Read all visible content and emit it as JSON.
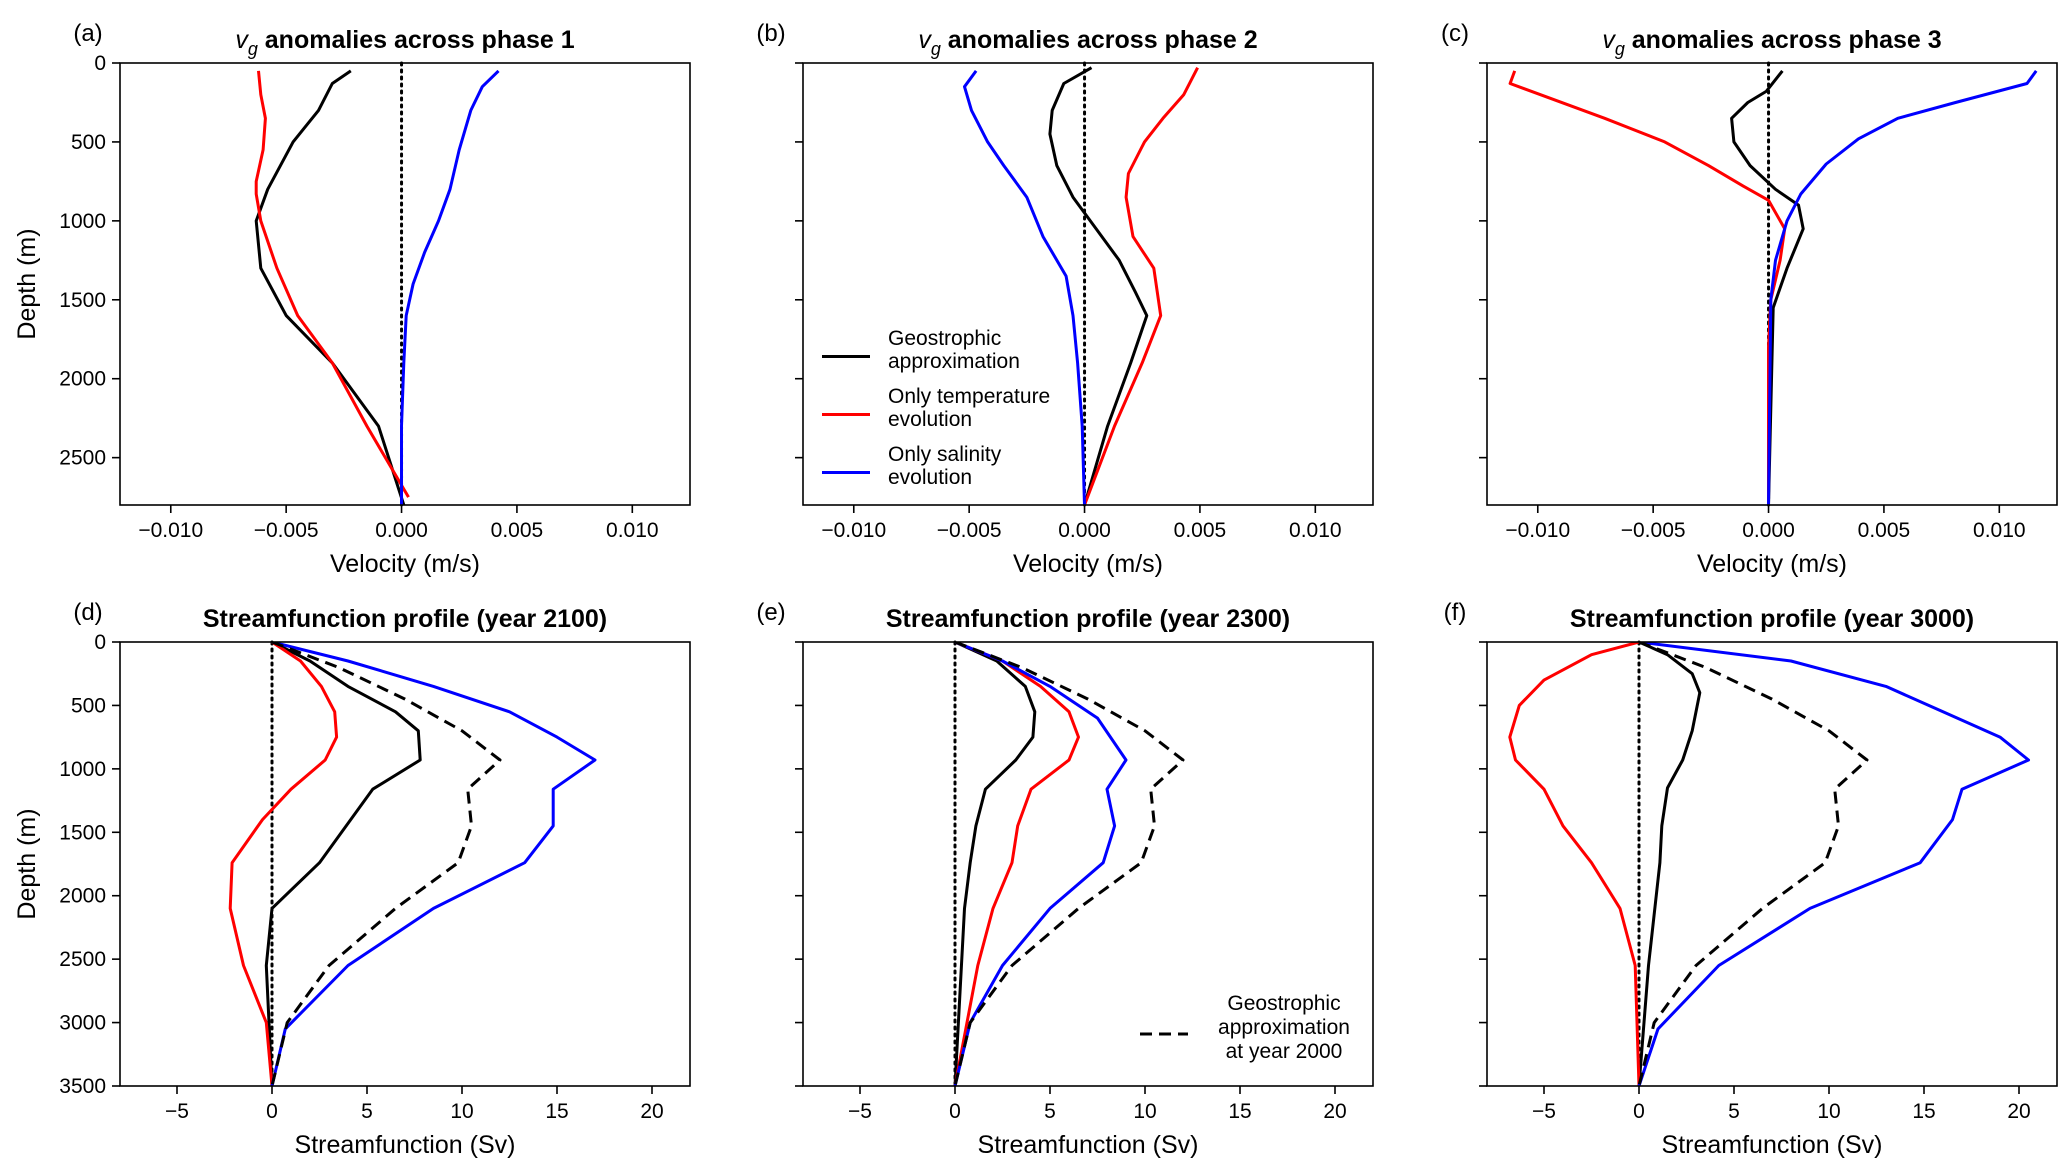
{
  "chart_data": [
    {
      "type": "line",
      "panel": "(a)",
      "title_prefix": "v",
      "title_sub": "g",
      "title_rest": " anomalies across phase 1",
      "xlabel": "Velocity (m/s)",
      "ylabel": "Depth (m)",
      "xlim": [
        -0.0122,
        0.0125
      ],
      "ylim": [
        2800,
        0
      ],
      "xticks": [
        -0.01,
        -0.005,
        0.0,
        0.005,
        0.01
      ],
      "xtick_labels": [
        "−0.010",
        "−0.005",
        "0.000",
        "0.005",
        "0.010"
      ],
      "yticks": [
        0,
        500,
        1000,
        1500,
        2000,
        2500
      ],
      "ytick_labels": [
        "0",
        "500",
        "1000",
        "1500",
        "2000",
        "2500"
      ],
      "show_yticklabels": true,
      "show_ylabel": true,
      "reference_line": "x=0 dotted",
      "series": [
        {
          "name": "Geostrophic approximation",
          "color": "#000000",
          "dash": "solid",
          "x": [
            -0.0022,
            -0.003,
            -0.0036,
            -0.0047,
            -0.0058,
            -0.0063,
            -0.0061,
            -0.005,
            -0.003,
            -0.001,
            0.0001
          ],
          "y": [
            50,
            130,
            300,
            500,
            800,
            1000,
            1300,
            1600,
            1900,
            2300,
            2800
          ]
        },
        {
          "name": "Only temperature evolution",
          "color": "#ff0000",
          "dash": "solid",
          "x": [
            -0.0062,
            -0.0061,
            -0.0059,
            -0.006,
            -0.0063,
            -0.0063,
            -0.0061,
            -0.0054,
            -0.0045,
            -0.003,
            -0.0015,
            0.0003
          ],
          "y": [
            50,
            200,
            350,
            550,
            750,
            830,
            1000,
            1300,
            1600,
            1900,
            2300,
            2750
          ]
        },
        {
          "name": "Only salinity evolution",
          "color": "#0000ff",
          "dash": "solid",
          "x": [
            0.0042,
            0.0035,
            0.003,
            0.0025,
            0.0021,
            0.0016,
            0.001,
            0.0005,
            0.0002,
            0.0001,
            0.0,
            0.0
          ],
          "y": [
            50,
            150,
            300,
            550,
            800,
            1000,
            1200,
            1400,
            1600,
            1900,
            2300,
            2800
          ]
        }
      ]
    },
    {
      "type": "line",
      "panel": "(b)",
      "title_prefix": "v",
      "title_sub": "g",
      "title_rest": " anomalies across phase 2",
      "xlabel": "Velocity (m/s)",
      "ylabel": "",
      "xlim": [
        -0.0122,
        0.0125
      ],
      "ylim": [
        2800,
        0
      ],
      "xticks": [
        -0.01,
        -0.005,
        0.0,
        0.005,
        0.01
      ],
      "xtick_labels": [
        "−0.010",
        "−0.005",
        "0.000",
        "0.005",
        "0.010"
      ],
      "yticks": [
        0,
        500,
        1000,
        1500,
        2000,
        2500
      ],
      "ytick_labels": [
        "",
        "",
        "",
        "",
        "",
        ""
      ],
      "show_yticklabels": false,
      "show_ylabel": false,
      "reference_line": "x=0 dotted",
      "series": [
        {
          "name": "Geostrophic approximation",
          "color": "#000000",
          "dash": "solid",
          "x": [
            0.0003,
            -0.0009,
            -0.0014,
            -0.0015,
            -0.0012,
            -0.0005,
            0.0005,
            0.0015,
            0.0022,
            0.0027,
            0.002,
            0.001,
            0.0
          ],
          "y": [
            30,
            130,
            300,
            450,
            650,
            850,
            1050,
            1250,
            1450,
            1600,
            1900,
            2300,
            2800
          ]
        },
        {
          "name": "Only temperature evolution",
          "color": "#ff0000",
          "dash": "solid",
          "x": [
            0.0049,
            0.0043,
            0.0034,
            0.0026,
            0.0019,
            0.0018,
            0.0021,
            0.003,
            0.0033,
            0.0025,
            0.0013,
            0.0
          ],
          "y": [
            30,
            200,
            350,
            500,
            700,
            850,
            1100,
            1300,
            1600,
            1900,
            2300,
            2800
          ]
        },
        {
          "name": "Only salinity evolution",
          "color": "#0000ff",
          "dash": "solid",
          "x": [
            -0.0047,
            -0.0052,
            -0.0049,
            -0.0042,
            -0.0035,
            -0.0025,
            -0.0018,
            -0.0008,
            -0.0005,
            -0.0003,
            -0.0001,
            0.0
          ],
          "y": [
            50,
            150,
            300,
            500,
            650,
            850,
            1100,
            1350,
            1600,
            1900,
            2300,
            2800
          ]
        }
      ]
    },
    {
      "type": "line",
      "panel": "(c)",
      "title_prefix": "v",
      "title_sub": "g",
      "title_rest": " anomalies across phase 3",
      "xlabel": "Velocity (m/s)",
      "ylabel": "",
      "xlim": [
        -0.0122,
        0.0125
      ],
      "ylim": [
        2800,
        0
      ],
      "xticks": [
        -0.01,
        -0.005,
        0.0,
        0.005,
        0.01
      ],
      "xtick_labels": [
        "−0.010",
        "−0.005",
        "0.000",
        "0.005",
        "0.010"
      ],
      "yticks": [
        0,
        500,
        1000,
        1500,
        2000,
        2500
      ],
      "ytick_labels": [
        "",
        "",
        "",
        "",
        "",
        ""
      ],
      "show_yticklabels": false,
      "show_ylabel": false,
      "reference_line": "x=0 dotted",
      "series": [
        {
          "name": "Geostrophic approximation",
          "color": "#000000",
          "dash": "solid",
          "x": [
            0.0006,
            -0.0001,
            -0.0009,
            -0.0016,
            -0.0015,
            -0.0008,
            0.0003,
            0.0013,
            0.0015,
            0.0008,
            0.0002,
            0.0
          ],
          "y": [
            50,
            180,
            250,
            350,
            500,
            650,
            800,
            900,
            1050,
            1300,
            1550,
            2800
          ]
        },
        {
          "name": "Only temperature evolution",
          "color": "#ff0000",
          "dash": "solid",
          "x": [
            -0.011,
            -0.0112,
            -0.0071,
            -0.0045,
            -0.0026,
            -0.0011,
            0.0,
            0.0007,
            0.0005,
            0.0001,
            0.0,
            0.0
          ],
          "y": [
            50,
            130,
            350,
            500,
            650,
            780,
            870,
            1050,
            1250,
            1500,
            1800,
            2800
          ]
        },
        {
          "name": "Only salinity evolution",
          "color": "#0000ff",
          "dash": "solid",
          "x": [
            0.0116,
            0.0112,
            0.0081,
            0.0056,
            0.0039,
            0.0025,
            0.0014,
            0.0008,
            0.0003,
            0.0001,
            0.0
          ],
          "y": [
            50,
            130,
            250,
            350,
            480,
            640,
            830,
            1000,
            1250,
            1500,
            2800
          ]
        }
      ]
    },
    {
      "type": "line",
      "panel": "(d)",
      "title": "Streamfunction profile (year 2100)",
      "xlabel": "Streamfunction (Sv)",
      "ylabel": "Depth (m)",
      "xlim": [
        -8,
        22
      ],
      "ylim": [
        3500,
        0
      ],
      "xticks": [
        -5,
        0,
        5,
        10,
        15,
        20
      ],
      "xtick_labels": [
        "−5",
        "0",
        "5",
        "10",
        "15",
        "20"
      ],
      "yticks": [
        0,
        500,
        1000,
        1500,
        2000,
        2500,
        3000,
        3500
      ],
      "ytick_labels": [
        "0",
        "500",
        "1000",
        "1500",
        "2000",
        "2500",
        "3000",
        "3500"
      ],
      "show_yticklabels": true,
      "show_ylabel": true,
      "reference_line": "x=0 dotted",
      "series": [
        {
          "name": "Geostrophic approximation",
          "color": "#000000",
          "dash": "solid",
          "x": [
            0,
            2.0,
            4.0,
            6.5,
            7.7,
            7.8,
            5.3,
            2.5,
            0,
            -0.3,
            0
          ],
          "y": [
            0,
            150,
            350,
            550,
            700,
            930,
            1160,
            1740,
            2100,
            2550,
            3500
          ]
        },
        {
          "name": "Only temperature evolution",
          "color": "#ff0000",
          "dash": "solid",
          "x": [
            0,
            1.5,
            2.6,
            3.3,
            3.4,
            2.8,
            1.0,
            -0.5,
            -2.1,
            -2.2,
            -1.5,
            -0.3,
            0
          ],
          "y": [
            0,
            150,
            350,
            550,
            750,
            930,
            1160,
            1400,
            1740,
            2100,
            2550,
            3000,
            3500
          ]
        },
        {
          "name": "Only salinity evolution",
          "color": "#0000ff",
          "dash": "solid",
          "x": [
            0,
            4.0,
            8.5,
            12.5,
            15.0,
            17.0,
            14.8,
            14.8,
            13.3,
            8.5,
            4.0,
            0.7,
            0
          ],
          "y": [
            0,
            150,
            350,
            550,
            750,
            930,
            1160,
            1450,
            1740,
            2100,
            2550,
            3050,
            3500
          ]
        },
        {
          "name": "Geostrophic approximation at year 2000",
          "color": "#000000",
          "dash": "dashed",
          "x": [
            0,
            3.5,
            7.0,
            10.0,
            12.0,
            10.3,
            10.5,
            9.8,
            6.5,
            3.0,
            0.8,
            0
          ],
          "y": [
            0,
            200,
            450,
            700,
            930,
            1160,
            1450,
            1740,
            2100,
            2550,
            3000,
            3500
          ]
        }
      ]
    },
    {
      "type": "line",
      "panel": "(e)",
      "title": "Streamfunction profile (year 2300)",
      "xlabel": "Streamfunction (Sv)",
      "ylabel": "",
      "xlim": [
        -8,
        22
      ],
      "ylim": [
        3500,
        0
      ],
      "xticks": [
        -5,
        0,
        5,
        10,
        15,
        20
      ],
      "xtick_labels": [
        "−5",
        "0",
        "5",
        "10",
        "15",
        "20"
      ],
      "yticks": [
        0,
        500,
        1000,
        1500,
        2000,
        2500,
        3000,
        3500
      ],
      "ytick_labels": [
        "",
        "",
        "",
        "",
        "",
        "",
        "",
        ""
      ],
      "show_yticklabels": false,
      "show_ylabel": false,
      "reference_line": "x=0 dotted",
      "series": [
        {
          "name": "Geostrophic approximation",
          "color": "#000000",
          "dash": "solid",
          "x": [
            0,
            2.2,
            3.7,
            4.2,
            4.1,
            3.2,
            1.6,
            1.1,
            0.8,
            0.5,
            0
          ],
          "y": [
            0,
            150,
            350,
            550,
            750,
            930,
            1160,
            1450,
            1740,
            2100,
            3500
          ]
        },
        {
          "name": "Only temperature evolution",
          "color": "#ff0000",
          "dash": "solid",
          "x": [
            0,
            2.5,
            4.5,
            6.0,
            6.5,
            6.0,
            4.0,
            3.3,
            3.0,
            2.0,
            1.2,
            0
          ],
          "y": [
            0,
            150,
            350,
            550,
            750,
            930,
            1160,
            1450,
            1740,
            2100,
            2550,
            3500
          ]
        },
        {
          "name": "Only salinity evolution",
          "color": "#0000ff",
          "dash": "solid",
          "x": [
            0,
            2.5,
            5.0,
            7.5,
            9.0,
            8.0,
            8.4,
            7.8,
            5.0,
            2.5,
            0.8,
            0
          ],
          "y": [
            0,
            150,
            350,
            600,
            930,
            1160,
            1450,
            1740,
            2100,
            2550,
            3000,
            3500
          ]
        },
        {
          "name": "Geostrophic approximation at year 2000",
          "color": "#000000",
          "dash": "dashed",
          "x": [
            0,
            3.5,
            7.0,
            10.0,
            12.0,
            10.3,
            10.5,
            9.8,
            6.5,
            3.0,
            0.8,
            0
          ],
          "y": [
            0,
            200,
            450,
            700,
            930,
            1160,
            1450,
            1740,
            2100,
            2550,
            3000,
            3500
          ]
        }
      ]
    },
    {
      "type": "line",
      "panel": "(f)",
      "title": "Streamfunction profile (year 3000)",
      "xlabel": "Streamfunction (Sv)",
      "ylabel": "",
      "xlim": [
        -8,
        22
      ],
      "ylim": [
        3500,
        0
      ],
      "xticks": [
        -5,
        0,
        5,
        10,
        15,
        20
      ],
      "xtick_labels": [
        "−5",
        "0",
        "5",
        "10",
        "15",
        "20"
      ],
      "yticks": [
        0,
        500,
        1000,
        1500,
        2000,
        2500,
        3000,
        3500
      ],
      "ytick_labels": [
        "",
        "",
        "",
        "",
        "",
        "",
        "",
        ""
      ],
      "show_yticklabels": false,
      "show_ylabel": false,
      "reference_line": "x=0 dotted",
      "series": [
        {
          "name": "Geostrophic approximation",
          "color": "#000000",
          "dash": "solid",
          "x": [
            0,
            1.5,
            2.8,
            3.2,
            2.8,
            2.3,
            1.5,
            1.2,
            1.1,
            0.5,
            0
          ],
          "y": [
            0,
            100,
            250,
            400,
            700,
            930,
            1150,
            1450,
            1740,
            2550,
            3500
          ]
        },
        {
          "name": "Only temperature evolution",
          "color": "#ff0000",
          "dash": "solid",
          "x": [
            0,
            -2.5,
            -5.0,
            -6.3,
            -6.8,
            -6.5,
            -5.0,
            -4.0,
            -2.5,
            -1.0,
            -0.2,
            0
          ],
          "y": [
            0,
            100,
            300,
            500,
            750,
            930,
            1160,
            1450,
            1740,
            2100,
            2550,
            3500
          ]
        },
        {
          "name": "Only salinity evolution",
          "color": "#0000ff",
          "dash": "solid",
          "x": [
            0,
            8.0,
            13.0,
            16.0,
            19.0,
            20.5,
            17.0,
            16.5,
            14.8,
            9.0,
            4.2,
            1.0,
            0
          ],
          "y": [
            0,
            150,
            350,
            550,
            750,
            930,
            1160,
            1400,
            1740,
            2100,
            2550,
            3050,
            3500
          ]
        },
        {
          "name": "Geostrophic approximation at year 2000",
          "color": "#000000",
          "dash": "dashed",
          "x": [
            0,
            3.5,
            7.0,
            10.0,
            12.0,
            10.3,
            10.5,
            9.8,
            6.5,
            3.0,
            0.8,
            0
          ],
          "y": [
            0,
            200,
            450,
            700,
            930,
            1160,
            1450,
            1740,
            2100,
            2550,
            3000,
            3500
          ]
        }
      ]
    }
  ],
  "legend_top": {
    "panel": "(b)",
    "items": [
      {
        "lines": [
          "Geostrophic",
          "approximation"
        ],
        "color": "#000000",
        "dash": "solid"
      },
      {
        "lines": [
          "Only temperature",
          "evolution"
        ],
        "color": "#ff0000",
        "dash": "solid"
      },
      {
        "lines": [
          "Only salinity",
          "evolution"
        ],
        "color": "#0000ff",
        "dash": "solid"
      }
    ]
  },
  "legend_bottom": {
    "panel": "(e)",
    "items": [
      {
        "lines": [
          "Geostrophic",
          "approximation",
          "at year 2000"
        ],
        "color": "#000000",
        "dash": "dashed"
      }
    ]
  }
}
